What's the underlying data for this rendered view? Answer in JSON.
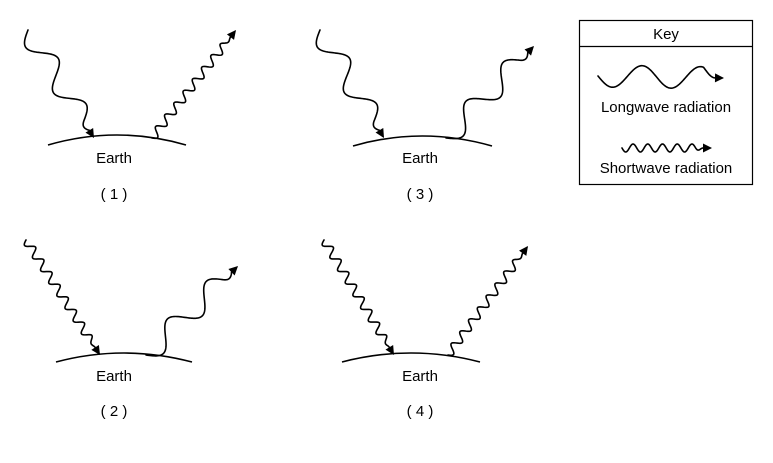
{
  "panels": [
    {
      "earth_label": "Earth",
      "number_label": "( 1 )",
      "incoming": "longwave",
      "outgoing": "shortwave"
    },
    {
      "earth_label": "Earth",
      "number_label": "( 3 )",
      "incoming": "longwave",
      "outgoing": "longwave"
    },
    {
      "earth_label": "Earth",
      "number_label": "( 2 )",
      "incoming": "shortwave",
      "outgoing": "longwave"
    },
    {
      "earth_label": "Earth",
      "number_label": "( 4 )",
      "incoming": "shortwave",
      "outgoing": "shortwave"
    }
  ],
  "key": {
    "title": "Key",
    "longwave_label": "Longwave radiation",
    "shortwave_label": "Shortwave radiation"
  }
}
